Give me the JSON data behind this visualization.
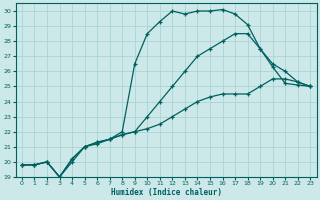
{
  "xlabel": "Humidex (Indice chaleur)",
  "bg_color": "#cce8e8",
  "line_color": "#006060",
  "grid_color": "#aad4d4",
  "xlim": [
    -0.5,
    23.5
  ],
  "ylim": [
    19,
    30.5
  ],
  "xticks": [
    0,
    1,
    2,
    3,
    4,
    5,
    6,
    7,
    8,
    9,
    10,
    11,
    12,
    13,
    14,
    15,
    16,
    17,
    18,
    19,
    20,
    21,
    22,
    23
  ],
  "yticks": [
    19,
    20,
    21,
    22,
    23,
    24,
    25,
    26,
    27,
    28,
    29,
    30
  ],
  "line1_x": [
    0,
    1,
    2,
    3,
    4,
    5,
    6,
    7,
    8,
    9,
    10,
    11,
    12,
    13,
    14,
    15,
    16,
    17,
    18,
    19,
    20,
    21,
    22,
    23
  ],
  "line1_y": [
    19.8,
    19.8,
    20.0,
    19.0,
    20.0,
    21.0,
    21.2,
    21.5,
    22.0,
    26.5,
    28.5,
    29.3,
    30.0,
    29.8,
    30.0,
    30.0,
    30.1,
    29.8,
    29.1,
    27.5,
    26.3,
    25.2,
    25.1,
    25.0
  ],
  "line2_x": [
    0,
    1,
    2,
    3,
    4,
    5,
    6,
    7,
    8,
    9,
    10,
    11,
    12,
    13,
    14,
    15,
    16,
    17,
    18,
    19,
    20,
    21,
    22,
    23
  ],
  "line2_y": [
    19.8,
    19.8,
    20.0,
    19.0,
    20.2,
    21.0,
    21.3,
    21.5,
    21.8,
    22.0,
    23.0,
    24.0,
    25.0,
    26.0,
    27.0,
    27.5,
    28.0,
    28.5,
    28.5,
    27.5,
    26.5,
    26.0,
    25.3,
    25.0
  ],
  "line3_x": [
    0,
    1,
    2,
    3,
    4,
    5,
    6,
    7,
    8,
    9,
    10,
    11,
    12,
    13,
    14,
    15,
    16,
    17,
    18,
    19,
    20,
    21,
    22,
    23
  ],
  "line3_y": [
    19.8,
    19.8,
    20.0,
    19.0,
    20.2,
    21.0,
    21.3,
    21.5,
    21.8,
    22.0,
    22.2,
    22.5,
    23.0,
    23.5,
    24.0,
    24.3,
    24.5,
    24.5,
    24.5,
    25.0,
    25.5,
    25.5,
    25.3,
    25.0
  ]
}
